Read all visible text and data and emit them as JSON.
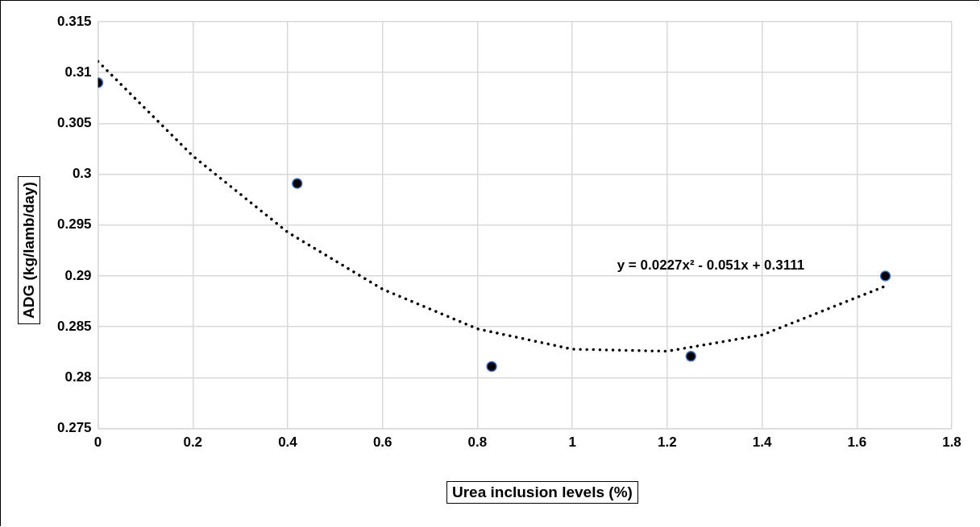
{
  "chart_data": {
    "type": "scatter",
    "xlabel": "Urea inclusion levels (%)",
    "ylabel": "ADG (kg/lamb/day)",
    "series": [
      {
        "color": "#000000",
        "x": [
          0,
          0.42,
          0.83,
          1.25,
          1.66
        ],
        "values": [
          0.309,
          0.2991,
          0.2811,
          0.2821,
          0.29
        ],
        "marker": "circle"
      },
      {
        "type": "line",
        "color": "#000000",
        "line_style": "dotted",
        "marker": "none",
        "x": [
          0,
          0.2,
          0.4,
          0.6,
          0.8,
          1.0,
          1.2,
          1.4,
          1.66
        ],
        "values": [
          0.3111,
          0.3018,
          0.2943,
          0.2887,
          0.2848,
          0.2828,
          0.2826,
          0.2842,
          0.289
        ]
      }
    ],
    "annotations": [
      "y = 0.0227x² - 0.051x + 0.3111"
    ],
    "xlim": [
      0,
      1.8
    ],
    "xticks": [
      0,
      0.2,
      0.4,
      0.6,
      0.8,
      1,
      1.2,
      1.4,
      1.6,
      1.8
    ],
    "ylim": [
      0.275,
      0.315
    ],
    "yticks": [
      0.275,
      0.28,
      0.285,
      0.29,
      0.295,
      0.3,
      0.305,
      0.31,
      0.315
    ],
    "grid": true,
    "legend": false
  }
}
